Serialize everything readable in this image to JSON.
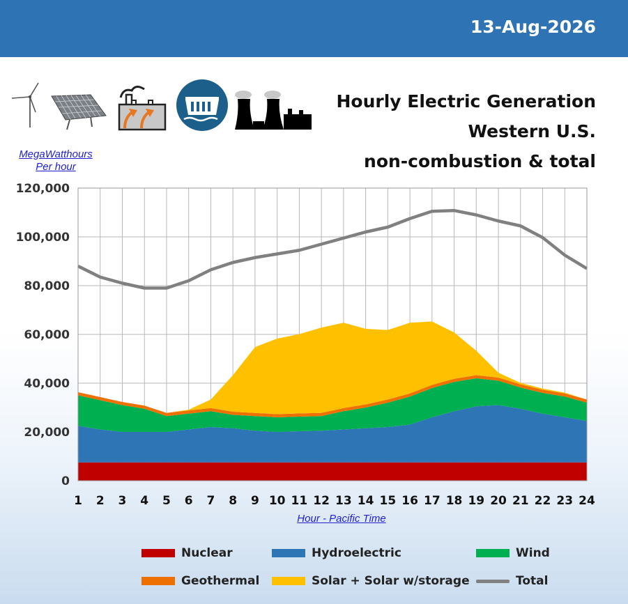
{
  "header": {
    "date": "13-Aug-2026",
    "color": "#2e74b5"
  },
  "title": {
    "line1": "Hourly Electric Generation",
    "line2": "Western U.S.",
    "line3": "non-combustion & total"
  },
  "icons": [
    "wind-turbine-icon",
    "solar-panel-icon",
    "geothermal-plant-icon",
    "hydro-dam-icon",
    "power-plant-icon"
  ],
  "chart_data": {
    "type": "area",
    "ylabel_line1": "MegaWatthours",
    "ylabel_line2": "Per hour",
    "xlabel": "Hour - Pacific Time",
    "x": [
      1,
      2,
      3,
      4,
      5,
      6,
      7,
      8,
      9,
      10,
      11,
      12,
      13,
      14,
      15,
      16,
      17,
      18,
      19,
      20,
      21,
      22,
      23,
      24
    ],
    "ylim": [
      0,
      120000
    ],
    "yticks": [
      "0",
      "20,000",
      "40,000",
      "60,000",
      "80,000",
      "100,000",
      "120,000"
    ],
    "grid": true,
    "stacked": true,
    "series": [
      {
        "name": "Nuclear",
        "color": "#c00000",
        "values": [
          7500,
          7500,
          7500,
          7500,
          7500,
          7500,
          7500,
          7500,
          7500,
          7500,
          7500,
          7500,
          7500,
          7500,
          7500,
          7500,
          7500,
          7500,
          7500,
          7500,
          7500,
          7500,
          7500,
          7500
        ]
      },
      {
        "name": "Hydroelectric",
        "color": "#2e75b6",
        "values": [
          15000,
          13500,
          12500,
          12500,
          12500,
          13500,
          14500,
          14000,
          13000,
          12500,
          12800,
          13000,
          13500,
          14000,
          14500,
          15500,
          18500,
          21000,
          23000,
          23500,
          22000,
          20000,
          18500,
          17000
        ]
      },
      {
        "name": "Wind",
        "color": "#00b050",
        "values": [
          12500,
          12000,
          11000,
          9500,
          6500,
          6500,
          6500,
          5500,
          6000,
          6000,
          6000,
          6000,
          7500,
          8500,
          10000,
          11500,
          12000,
          12000,
          11500,
          10000,
          8700,
          8500,
          8500,
          7500
        ]
      },
      {
        "name": "Geothermal",
        "color": "#ed7000",
        "values": [
          1300,
          1300,
          1300,
          1300,
          1300,
          1300,
          1300,
          1300,
          1300,
          1300,
          1300,
          1300,
          1300,
          1300,
          1300,
          1300,
          1300,
          1300,
          1300,
          1300,
          1300,
          1300,
          1300,
          1300
        ]
      },
      {
        "name": "Solar + Solar w/storage",
        "color": "#ffc000",
        "values": [
          0,
          0,
          0,
          0,
          0,
          300,
          3500,
          15000,
          27000,
          31000,
          32500,
          35000,
          35000,
          31000,
          28500,
          29000,
          26000,
          19000,
          10000,
          2000,
          600,
          500,
          300,
          0
        ]
      }
    ],
    "total": {
      "name": "Total",
      "color": "#808080",
      "values": [
        88000,
        83500,
        81000,
        79000,
        79000,
        82000,
        86500,
        89500,
        91500,
        93000,
        94500,
        97000,
        99500,
        102000,
        104000,
        107500,
        110500,
        110800,
        109000,
        106500,
        104500,
        99700,
        92500,
        87000
      ]
    },
    "legend": {
      "row1": [
        "Nuclear",
        "Hydroelectric",
        "Wind"
      ],
      "row2": [
        "Geothermal",
        "Solar + Solar w/storage",
        "Total"
      ]
    }
  }
}
